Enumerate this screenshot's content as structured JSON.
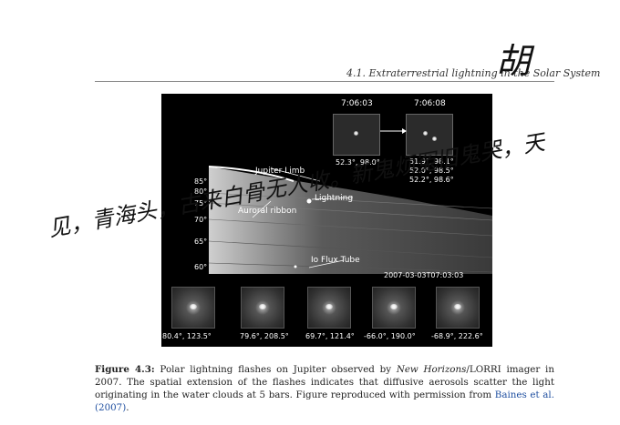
{
  "header": {
    "running_head": "4.1.  Extraterrestrial lightning in the Solar System"
  },
  "figure": {
    "top_insets": [
      {
        "time": "7:06:03",
        "labels": [
          "52.3°, 98.0°"
        ]
      },
      {
        "time": "7:06:08",
        "labels": [
          "51.9°, 98.1°",
          "52.0°, 98.5°",
          "52.2°, 98.6°"
        ]
      }
    ],
    "latitude_ticks": [
      "85°",
      "80°",
      "75°",
      "70°",
      "65°",
      "60°"
    ],
    "annotations": {
      "jupiter_limb": "Jupiter Limb",
      "lightning": "Lightning",
      "auroral_ribbon": "Auroral ribbon",
      "io_flux_tube": "Io Flux Tube",
      "timestamp": "2007-03-03T07:03:03"
    },
    "bottom_panels": [
      {
        "label": "80.4°, 123.5°"
      },
      {
        "label": "79.6°, 208.5°"
      },
      {
        "label": "69.7°, 121.4°"
      },
      {
        "label": "-66.0°, 190.0°"
      },
      {
        "label": "-68.9°, 222.6°"
      }
    ]
  },
  "caption": {
    "label": "Figure 4.3:",
    "text_a": " Polar lightning flashes on Jupiter observed by ",
    "italic": "New Horizons",
    "text_b": "/LORRI imager in 2007.  The spatial extension of the flashes indicates that diffusive aerosols scatter the light originating in the water clouds at 5 bars. Figure reproduced with permission from ",
    "citation": "Baines et al. (2007)",
    "text_c": "."
  },
  "handwriting": {
    "signature": "胡",
    "line1": "见，青海头，古来白骨无人收。新鬼烦冤旧鬼哭，天"
  }
}
